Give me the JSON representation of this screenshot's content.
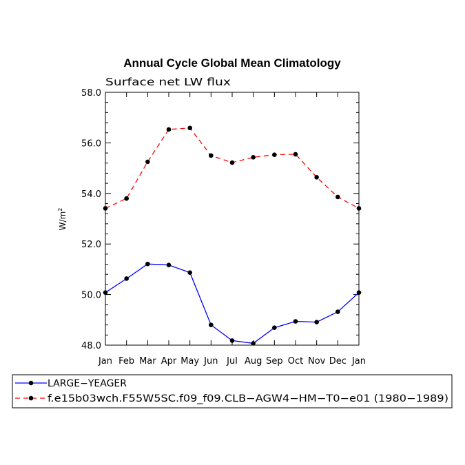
{
  "chart_data": {
    "type": "line",
    "title": "Annual Cycle Global Mean Climatology",
    "subtitle": "Surface net LW flux",
    "ylabel": "W/m",
    "ylabel_sup": "2",
    "xlabel": "",
    "categories": [
      "Jan",
      "Feb",
      "Mar",
      "Apr",
      "May",
      "Jun",
      "Jul",
      "Aug",
      "Sep",
      "Oct",
      "Nov",
      "Dec",
      "Jan"
    ],
    "ylim": [
      48.0,
      58.0
    ],
    "yticks": [
      48.0,
      50.0,
      52.0,
      54.0,
      56.0,
      58.0
    ],
    "ytick_labels": [
      "48.0",
      "50.0",
      "52.0",
      "54.0",
      "56.0",
      "58.0"
    ],
    "grid": false,
    "legend_position": "bottom",
    "series": [
      {
        "name": "LARGE−YEAGER",
        "color": "#0000ff",
        "dash": "solid",
        "values": [
          50.08,
          50.63,
          51.21,
          51.17,
          50.87,
          48.8,
          48.18,
          48.07,
          48.69,
          48.94,
          48.91,
          49.32,
          50.08
        ]
      },
      {
        "name": "f.e15b03wch.F55W5SC.f09_f09.CLB−AGW4−HM−T0−e01 (1980−1989)",
        "color": "#ff0000",
        "dash": "dashed",
        "values": [
          53.41,
          53.8,
          55.25,
          56.53,
          56.59,
          55.5,
          55.22,
          55.43,
          55.53,
          55.55,
          54.64,
          53.86,
          53.41
        ]
      }
    ]
  }
}
